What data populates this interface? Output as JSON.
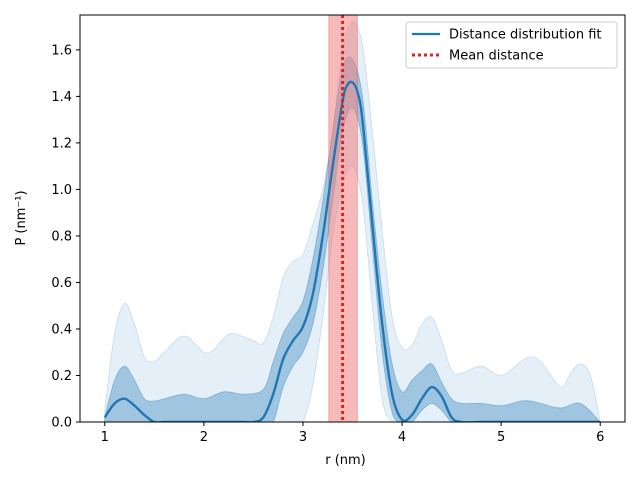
{
  "chart_data": {
    "type": "line",
    "xlabel": "r (nm)",
    "ylabel": "P (nm⁻¹)",
    "xlim": [
      0.75,
      6.25
    ],
    "ylim": [
      0,
      1.75
    ],
    "x_ticks": [
      1,
      2,
      3,
      4,
      5,
      6
    ],
    "x_tick_labels": [
      "1",
      "2",
      "3",
      "4",
      "5",
      "6"
    ],
    "y_ticks": [
      0.0,
      0.2,
      0.4,
      0.6,
      0.8,
      1.0,
      1.2,
      1.4,
      1.6
    ],
    "y_tick_labels": [
      "0.0",
      "0.2",
      "0.4",
      "0.6",
      "0.8",
      "1.0",
      "1.2",
      "1.4",
      "1.6"
    ],
    "grid": false,
    "legend_position": "top-right",
    "colors": {
      "fit_line": "#1f77b4",
      "inner_band": "#1f77b4",
      "outer_band": "#c6dbef",
      "mean_line": "#d62728",
      "mean_band": "#f08080"
    },
    "series": [
      {
        "name": "Distance distribution fit",
        "style": "solid",
        "x": [
          1.0,
          1.1,
          1.2,
          1.3,
          1.4,
          1.5,
          1.6,
          1.8,
          2.0,
          2.2,
          2.4,
          2.5,
          2.6,
          2.7,
          2.8,
          2.9,
          3.0,
          3.1,
          3.2,
          3.3,
          3.4,
          3.45,
          3.5,
          3.55,
          3.6,
          3.7,
          3.8,
          3.9,
          4.0,
          4.1,
          4.2,
          4.3,
          4.4,
          4.5,
          4.6,
          4.8,
          5.0,
          5.2,
          5.4,
          5.6,
          5.8,
          6.0
        ],
        "y": [
          0.02,
          0.08,
          0.1,
          0.07,
          0.03,
          0.0,
          0.0,
          0.0,
          0.0,
          0.0,
          0.0,
          0.0,
          0.02,
          0.12,
          0.27,
          0.35,
          0.41,
          0.55,
          0.8,
          1.1,
          1.38,
          1.45,
          1.46,
          1.42,
          1.3,
          0.85,
          0.42,
          0.12,
          0.01,
          0.03,
          0.1,
          0.15,
          0.11,
          0.02,
          0.0,
          0.0,
          0.0,
          0.0,
          0.0,
          0.0,
          0.0,
          0.0
        ]
      },
      {
        "name": "Mean distance",
        "style": "dotted",
        "value": 3.4
      }
    ],
    "bands": {
      "inner": {
        "x": [
          1.0,
          1.1,
          1.2,
          1.3,
          1.4,
          1.5,
          1.6,
          1.8,
          2.0,
          2.2,
          2.4,
          2.6,
          2.7,
          2.8,
          2.9,
          3.0,
          3.1,
          3.2,
          3.3,
          3.4,
          3.5,
          3.6,
          3.7,
          3.8,
          3.9,
          4.0,
          4.1,
          4.2,
          4.3,
          4.4,
          4.5,
          4.6,
          4.8,
          5.0,
          5.2,
          5.3,
          5.4,
          5.6,
          5.8,
          6.0
        ],
        "upper": [
          0.02,
          0.18,
          0.24,
          0.18,
          0.1,
          0.09,
          0.1,
          0.12,
          0.1,
          0.13,
          0.12,
          0.14,
          0.26,
          0.38,
          0.45,
          0.52,
          0.7,
          0.95,
          1.25,
          1.52,
          1.56,
          1.4,
          0.95,
          0.55,
          0.25,
          0.13,
          0.18,
          0.22,
          0.25,
          0.17,
          0.1,
          0.08,
          0.08,
          0.07,
          0.09,
          0.09,
          0.08,
          0.06,
          0.08,
          0.0
        ],
        "lower": [
          0.0,
          0.0,
          0.0,
          0.0,
          0.0,
          0.0,
          0.0,
          0.0,
          0.0,
          0.0,
          0.0,
          0.0,
          0.0,
          0.15,
          0.24,
          0.3,
          0.42,
          0.65,
          0.95,
          1.25,
          1.35,
          1.2,
          0.75,
          0.3,
          0.04,
          0.0,
          0.0,
          0.05,
          0.08,
          0.05,
          0.0,
          0.0,
          0.0,
          0.0,
          0.0,
          0.0,
          0.0,
          0.0,
          0.0,
          0.0
        ]
      },
      "outer": {
        "x": [
          1.0,
          1.1,
          1.2,
          1.3,
          1.4,
          1.5,
          1.6,
          1.8,
          2.0,
          2.1,
          2.2,
          2.3,
          2.5,
          2.6,
          2.7,
          2.8,
          2.9,
          3.0,
          3.1,
          3.2,
          3.3,
          3.4,
          3.5,
          3.6,
          3.7,
          3.8,
          3.9,
          4.0,
          4.1,
          4.2,
          4.3,
          4.4,
          4.5,
          4.6,
          4.8,
          5.0,
          5.2,
          5.3,
          5.4,
          5.6,
          5.7,
          5.8,
          5.9,
          6.0
        ],
        "upper": [
          0.05,
          0.38,
          0.51,
          0.42,
          0.28,
          0.26,
          0.3,
          0.37,
          0.3,
          0.31,
          0.36,
          0.38,
          0.35,
          0.34,
          0.45,
          0.62,
          0.69,
          0.72,
          0.85,
          1.0,
          1.25,
          1.6,
          1.72,
          1.62,
          1.25,
          0.82,
          0.45,
          0.32,
          0.33,
          0.42,
          0.45,
          0.35,
          0.22,
          0.21,
          0.24,
          0.2,
          0.26,
          0.28,
          0.26,
          0.15,
          0.21,
          0.25,
          0.2,
          0.0
        ],
        "lower": [
          0.0,
          0.0,
          0.0,
          0.0,
          0.0,
          0.0,
          0.0,
          0.0,
          0.0,
          0.0,
          0.0,
          0.0,
          0.0,
          0.0,
          0.0,
          0.0,
          0.0,
          0.0,
          0.16,
          0.45,
          0.8,
          1.02,
          1.1,
          0.95,
          0.5,
          0.1,
          0.0,
          0.0,
          0.0,
          0.0,
          0.0,
          0.0,
          0.0,
          0.0,
          0.0,
          0.0,
          0.0,
          0.0,
          0.0,
          0.0,
          0.0,
          0.0,
          0.0,
          0.0
        ]
      },
      "mean_range": [
        3.26,
        3.55
      ]
    },
    "legend": [
      "Distance distribution fit",
      "Mean distance"
    ]
  }
}
